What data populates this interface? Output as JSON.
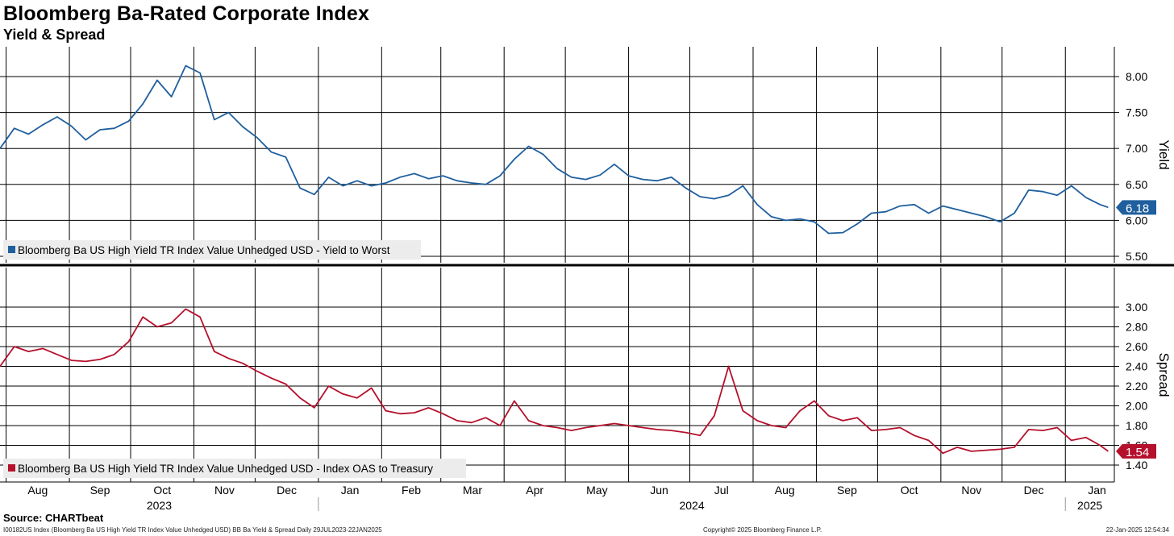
{
  "header": {
    "title": "Bloomberg Ba-Rated Corporate Index",
    "subtitle": "Yield & Spread"
  },
  "footer": {
    "source": "Source: CHARTbeat",
    "ticker_note": "I00182US Index (Bloomberg Ba US High Yield  TR Index Value Unhedged USD) BB Ba Yield & Spread  Daily 29JUL2023-22JAN2025",
    "copyright": "Copyright© 2025 Bloomberg Finance L.P.",
    "timestamp": "22-Jan-2025 12:54:34"
  },
  "colors": {
    "yield": "#1f5f9e",
    "spread": "#b5102c",
    "grid": "#000000"
  },
  "chart_data": [
    {
      "type": "line",
      "panel": "top",
      "ylabel": "Yield",
      "ylim": [
        5.5,
        8.3
      ],
      "yticks": [
        "8.00",
        "7.50",
        "7.00",
        "6.50",
        "6.00",
        "5.50"
      ],
      "last_value_label": "6.18",
      "legend": "top-left",
      "series": [
        {
          "name": "Bloomberg Ba US High Yield TR Index Value Unhedged USD - Yield to Worst",
          "x": [
            "2023-07-29",
            "2023-08-05",
            "2023-08-12",
            "2023-08-19",
            "2023-08-26",
            "2023-09-02",
            "2023-09-09",
            "2023-09-16",
            "2023-09-23",
            "2023-09-30",
            "2023-10-07",
            "2023-10-14",
            "2023-10-21",
            "2023-10-28",
            "2023-11-04",
            "2023-11-11",
            "2023-11-18",
            "2023-11-25",
            "2023-12-02",
            "2023-12-09",
            "2023-12-16",
            "2023-12-23",
            "2023-12-30",
            "2024-01-06",
            "2024-01-13",
            "2024-01-20",
            "2024-01-27",
            "2024-02-03",
            "2024-02-10",
            "2024-02-17",
            "2024-02-24",
            "2024-03-02",
            "2024-03-09",
            "2024-03-16",
            "2024-03-23",
            "2024-03-30",
            "2024-04-06",
            "2024-04-13",
            "2024-04-20",
            "2024-04-27",
            "2024-05-04",
            "2024-05-11",
            "2024-05-18",
            "2024-05-25",
            "2024-06-01",
            "2024-06-08",
            "2024-06-15",
            "2024-06-22",
            "2024-06-29",
            "2024-07-06",
            "2024-07-13",
            "2024-07-20",
            "2024-07-27",
            "2024-08-03",
            "2024-08-10",
            "2024-08-17",
            "2024-08-24",
            "2024-08-31",
            "2024-09-07",
            "2024-09-14",
            "2024-09-21",
            "2024-09-28",
            "2024-10-05",
            "2024-10-12",
            "2024-10-19",
            "2024-10-26",
            "2024-11-02",
            "2024-11-09",
            "2024-11-16",
            "2024-11-23",
            "2024-11-30",
            "2024-12-07",
            "2024-12-14",
            "2024-12-21",
            "2024-12-28",
            "2025-01-04",
            "2025-01-11",
            "2025-01-18",
            "2025-01-22"
          ],
          "values": [
            7.0,
            7.28,
            7.2,
            7.33,
            7.44,
            7.31,
            7.12,
            7.26,
            7.28,
            7.38,
            7.62,
            7.95,
            7.72,
            8.15,
            8.05,
            7.4,
            7.5,
            7.3,
            7.15,
            6.95,
            6.88,
            6.45,
            6.36,
            6.6,
            6.48,
            6.55,
            6.48,
            6.52,
            6.6,
            6.65,
            6.58,
            6.62,
            6.55,
            6.52,
            6.5,
            6.62,
            6.85,
            7.03,
            6.92,
            6.72,
            6.6,
            6.57,
            6.63,
            6.78,
            6.62,
            6.57,
            6.55,
            6.6,
            6.45,
            6.33,
            6.3,
            6.35,
            6.48,
            6.22,
            6.05,
            6.0,
            6.02,
            5.98,
            5.82,
            5.83,
            5.95,
            6.1,
            6.12,
            6.2,
            6.22,
            6.1,
            6.2,
            6.15,
            6.1,
            6.05,
            5.98,
            6.1,
            6.42,
            6.4,
            6.35,
            6.48,
            6.32,
            6.22,
            6.18
          ]
        }
      ]
    },
    {
      "type": "line",
      "panel": "bottom",
      "ylabel": "Spread",
      "ylim": [
        1.3,
        3.1
      ],
      "yticks": [
        "3.00",
        "2.80",
        "2.60",
        "2.40",
        "2.20",
        "2.00",
        "1.80",
        "1.60",
        "1.40"
      ],
      "last_value_label": "1.54",
      "legend": "bottom-left",
      "series": [
        {
          "name": "Bloomberg Ba US High Yield TR Index Value Unhedged USD - Index OAS to Treasury",
          "x": [
            "2023-07-29",
            "2023-08-05",
            "2023-08-12",
            "2023-08-19",
            "2023-08-26",
            "2023-09-02",
            "2023-09-09",
            "2023-09-16",
            "2023-09-23",
            "2023-09-30",
            "2023-10-07",
            "2023-10-14",
            "2023-10-21",
            "2023-10-28",
            "2023-11-04",
            "2023-11-11",
            "2023-11-18",
            "2023-11-25",
            "2023-12-02",
            "2023-12-09",
            "2023-12-16",
            "2023-12-23",
            "2023-12-30",
            "2024-01-06",
            "2024-01-13",
            "2024-01-20",
            "2024-01-27",
            "2024-02-03",
            "2024-02-10",
            "2024-02-17",
            "2024-02-24",
            "2024-03-02",
            "2024-03-09",
            "2024-03-16",
            "2024-03-23",
            "2024-03-30",
            "2024-04-06",
            "2024-04-13",
            "2024-04-20",
            "2024-04-27",
            "2024-05-04",
            "2024-05-11",
            "2024-05-18",
            "2024-05-25",
            "2024-06-01",
            "2024-06-08",
            "2024-06-15",
            "2024-06-22",
            "2024-06-29",
            "2024-07-06",
            "2024-07-13",
            "2024-07-20",
            "2024-07-27",
            "2024-08-03",
            "2024-08-10",
            "2024-08-17",
            "2024-08-24",
            "2024-08-31",
            "2024-09-07",
            "2024-09-14",
            "2024-09-21",
            "2024-09-28",
            "2024-10-05",
            "2024-10-12",
            "2024-10-19",
            "2024-10-26",
            "2024-11-02",
            "2024-11-09",
            "2024-11-16",
            "2024-11-23",
            "2024-11-30",
            "2024-12-07",
            "2024-12-14",
            "2024-12-21",
            "2024-12-28",
            "2025-01-04",
            "2025-01-11",
            "2025-01-18",
            "2025-01-22"
          ],
          "values": [
            2.4,
            2.6,
            2.55,
            2.58,
            2.52,
            2.46,
            2.45,
            2.47,
            2.52,
            2.65,
            2.9,
            2.8,
            2.84,
            2.98,
            2.9,
            2.55,
            2.48,
            2.43,
            2.35,
            2.28,
            2.22,
            2.08,
            1.98,
            2.2,
            2.12,
            2.08,
            2.18,
            1.95,
            1.92,
            1.93,
            1.98,
            1.92,
            1.85,
            1.83,
            1.88,
            1.8,
            2.05,
            1.85,
            1.8,
            1.78,
            1.75,
            1.78,
            1.8,
            1.82,
            1.8,
            1.78,
            1.76,
            1.75,
            1.73,
            1.7,
            1.9,
            2.4,
            1.95,
            1.85,
            1.8,
            1.78,
            1.95,
            2.05,
            1.9,
            1.85,
            1.88,
            1.75,
            1.76,
            1.78,
            1.7,
            1.65,
            1.52,
            1.58,
            1.54,
            1.55,
            1.56,
            1.58,
            1.76,
            1.75,
            1.78,
            1.65,
            1.68,
            1.6,
            1.54
          ]
        }
      ]
    }
  ],
  "x_axis": {
    "months": [
      "Aug",
      "Sep",
      "Oct",
      "Nov",
      "Dec",
      "Jan",
      "Feb",
      "Mar",
      "Apr",
      "May",
      "Jun",
      "Jul",
      "Aug",
      "Sep",
      "Oct",
      "Nov",
      "Dec",
      "Jan"
    ],
    "years": [
      "2023",
      "2024",
      "2025"
    ]
  }
}
